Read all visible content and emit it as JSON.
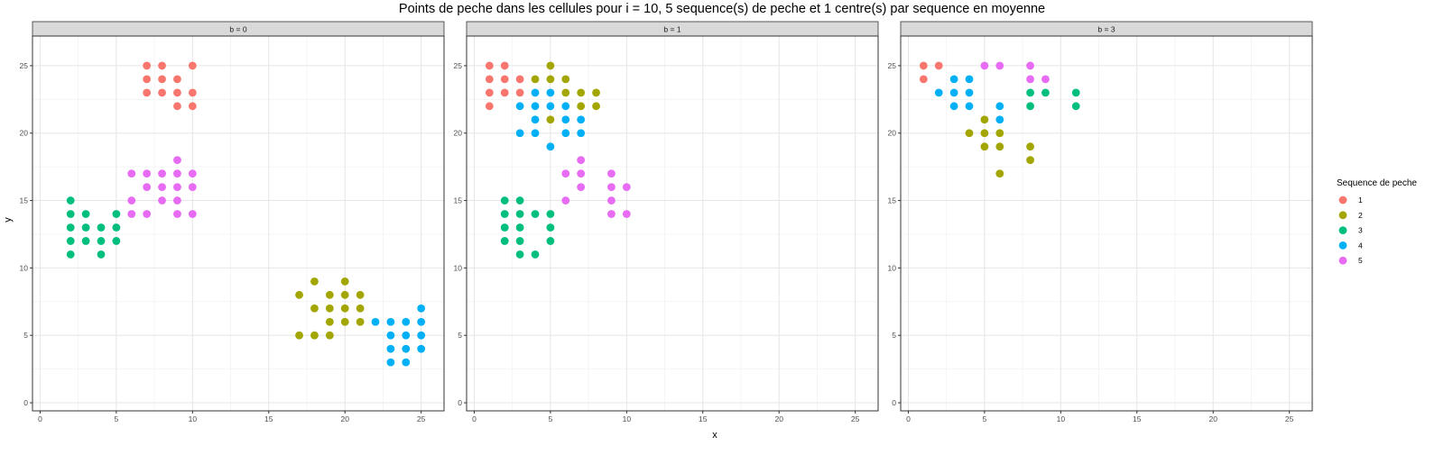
{
  "chart_data": {
    "type": "scatter",
    "title": "Points de peche dans les cellules pour i = 10, 5 sequence(s) de peche et 1 centre(s) par sequence en moyenne",
    "xlabel": "x",
    "ylabel": "y",
    "xlim": [
      -0.5,
      26.5
    ],
    "ylim": [
      -0.6,
      27.2
    ],
    "x_ticks": [
      0,
      5,
      10,
      15,
      20,
      25
    ],
    "y_ticks": [
      0,
      5,
      10,
      15,
      20,
      25
    ],
    "grid": true,
    "legend": {
      "title": "Sequence de peche",
      "placement": "right",
      "entries": [
        {
          "label": "1",
          "color": "#F8766D"
        },
        {
          "label": "2",
          "color": "#A3A500"
        },
        {
          "label": "3",
          "color": "#00BF7D"
        },
        {
          "label": "4",
          "color": "#00B0F6"
        },
        {
          "label": "5",
          "color": "#E76BF3"
        }
      ]
    },
    "panels": [
      {
        "strip": "b = 0",
        "series": [
          {
            "name": "1",
            "points": [
              [
                7,
                25
              ],
              [
                8,
                25
              ],
              [
                10,
                25
              ],
              [
                7,
                24
              ],
              [
                8,
                24
              ],
              [
                9,
                24
              ],
              [
                7,
                23
              ],
              [
                8,
                23
              ],
              [
                9,
                23
              ],
              [
                10,
                23
              ],
              [
                9,
                22
              ],
              [
                10,
                22
              ]
            ]
          },
          {
            "name": "2",
            "points": [
              [
                18,
                9
              ],
              [
                20,
                9
              ],
              [
                17,
                8
              ],
              [
                19,
                8
              ],
              [
                20,
                8
              ],
              [
                21,
                8
              ],
              [
                18,
                7
              ],
              [
                19,
                7
              ],
              [
                20,
                7
              ],
              [
                21,
                7
              ],
              [
                19,
                6
              ],
              [
                20,
                6
              ],
              [
                21,
                6
              ],
              [
                17,
                5
              ],
              [
                18,
                5
              ],
              [
                19,
                5
              ]
            ]
          },
          {
            "name": "3",
            "points": [
              [
                2,
                15
              ],
              [
                2,
                14
              ],
              [
                3,
                14
              ],
              [
                5,
                14
              ],
              [
                2,
                13
              ],
              [
                3,
                13
              ],
              [
                4,
                13
              ],
              [
                5,
                13
              ],
              [
                2,
                12
              ],
              [
                3,
                12
              ],
              [
                4,
                12
              ],
              [
                5,
                12
              ],
              [
                2,
                11
              ],
              [
                4,
                11
              ]
            ]
          },
          {
            "name": "4",
            "points": [
              [
                25,
                7
              ],
              [
                22,
                6
              ],
              [
                23,
                6
              ],
              [
                24,
                6
              ],
              [
                25,
                6
              ],
              [
                23,
                5
              ],
              [
                24,
                5
              ],
              [
                25,
                5
              ],
              [
                23,
                4
              ],
              [
                24,
                4
              ],
              [
                25,
                4
              ],
              [
                23,
                3
              ],
              [
                24,
                3
              ]
            ]
          },
          {
            "name": "5",
            "points": [
              [
                9,
                18
              ],
              [
                6,
                17
              ],
              [
                7,
                17
              ],
              [
                8,
                17
              ],
              [
                9,
                17
              ],
              [
                10,
                17
              ],
              [
                7,
                16
              ],
              [
                8,
                16
              ],
              [
                9,
                16
              ],
              [
                10,
                16
              ],
              [
                6,
                15
              ],
              [
                8,
                15
              ],
              [
                9,
                15
              ],
              [
                6,
                14
              ],
              [
                7,
                14
              ],
              [
                9,
                14
              ],
              [
                10,
                14
              ]
            ]
          }
        ]
      },
      {
        "strip": "b = 1",
        "series": [
          {
            "name": "1",
            "points": [
              [
                1,
                25
              ],
              [
                2,
                25
              ],
              [
                1,
                24
              ],
              [
                2,
                24
              ],
              [
                3,
                24
              ],
              [
                1,
                23
              ],
              [
                2,
                23
              ],
              [
                3,
                23
              ],
              [
                1,
                22
              ]
            ]
          },
          {
            "name": "2",
            "points": [
              [
                5,
                25
              ],
              [
                4,
                24
              ],
              [
                5,
                24
              ],
              [
                6,
                24
              ],
              [
                6,
                23
              ],
              [
                7,
                23
              ],
              [
                8,
                23
              ],
              [
                7,
                22
              ],
              [
                8,
                22
              ],
              [
                5,
                21
              ]
            ]
          },
          {
            "name": "3",
            "points": [
              [
                2,
                15
              ],
              [
                3,
                15
              ],
              [
                2,
                14
              ],
              [
                3,
                14
              ],
              [
                4,
                14
              ],
              [
                5,
                14
              ],
              [
                2,
                13
              ],
              [
                3,
                13
              ],
              [
                5,
                13
              ],
              [
                2,
                12
              ],
              [
                3,
                12
              ],
              [
                5,
                12
              ],
              [
                3,
                11
              ],
              [
                4,
                11
              ]
            ]
          },
          {
            "name": "4",
            "points": [
              [
                4,
                23
              ],
              [
                5,
                23
              ],
              [
                3,
                22
              ],
              [
                4,
                22
              ],
              [
                5,
                22
              ],
              [
                6,
                22
              ],
              [
                4,
                21
              ],
              [
                6,
                21
              ],
              [
                7,
                21
              ],
              [
                3,
                20
              ],
              [
                4,
                20
              ],
              [
                6,
                20
              ],
              [
                7,
                20
              ],
              [
                5,
                19
              ]
            ]
          },
          {
            "name": "5",
            "points": [
              [
                7,
                18
              ],
              [
                6,
                17
              ],
              [
                7,
                17
              ],
              [
                9,
                17
              ],
              [
                7,
                16
              ],
              [
                9,
                16
              ],
              [
                10,
                16
              ],
              [
                6,
                15
              ],
              [
                9,
                15
              ],
              [
                9,
                14
              ],
              [
                10,
                14
              ]
            ]
          }
        ]
      },
      {
        "strip": "b = 3",
        "series": [
          {
            "name": "1",
            "points": [
              [
                1,
                25
              ],
              [
                2,
                25
              ],
              [
                1,
                24
              ]
            ]
          },
          {
            "name": "2",
            "points": [
              [
                5,
                21
              ],
              [
                4,
                20
              ],
              [
                5,
                20
              ],
              [
                6,
                20
              ],
              [
                5,
                19
              ],
              [
                6,
                19
              ],
              [
                8,
                19
              ],
              [
                8,
                18
              ],
              [
                6,
                17
              ]
            ]
          },
          {
            "name": "3",
            "points": [
              [
                8,
                23
              ],
              [
                9,
                23
              ],
              [
                11,
                23
              ],
              [
                8,
                22
              ],
              [
                11,
                22
              ]
            ]
          },
          {
            "name": "4",
            "points": [
              [
                3,
                24
              ],
              [
                4,
                24
              ],
              [
                2,
                23
              ],
              [
                3,
                23
              ],
              [
                4,
                23
              ],
              [
                3,
                22
              ],
              [
                4,
                22
              ],
              [
                6,
                22
              ],
              [
                6,
                21
              ]
            ]
          },
          {
            "name": "5",
            "points": [
              [
                5,
                25
              ],
              [
                6,
                25
              ],
              [
                8,
                25
              ],
              [
                8,
                24
              ],
              [
                9,
                24
              ]
            ]
          }
        ]
      }
    ]
  }
}
